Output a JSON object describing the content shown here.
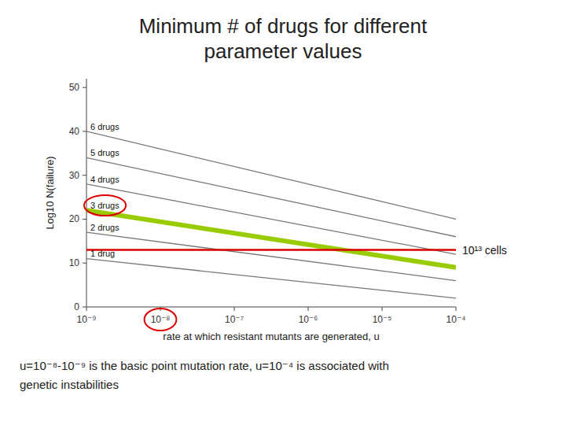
{
  "chart_data": {
    "type": "line",
    "title": [
      "Minimum # of drugs for different",
      "parameter values"
    ],
    "x_label": "rate at which resistant mutants are generated, u",
    "y_label": "Log10 N(failure)",
    "xlim": [
      -9,
      -4
    ],
    "ylim": [
      0,
      52
    ],
    "xticks": [
      {
        "value": -9,
        "label": "10⁻⁹"
      },
      {
        "value": -8,
        "label": "10⁻⁸"
      },
      {
        "value": -7,
        "label": "10⁻⁷"
      },
      {
        "value": -6,
        "label": "10⁻⁶"
      },
      {
        "value": -5,
        "label": "10⁻⁵"
      },
      {
        "value": -4,
        "label": "10⁻⁴"
      }
    ],
    "yticks": [
      0,
      10,
      20,
      30,
      40,
      50
    ],
    "grid": false,
    "series": [
      {
        "name": "1 drug",
        "color": "#777777",
        "x": [
          -9,
          -4
        ],
        "values": [
          11,
          2
        ]
      },
      {
        "name": "2 drugs",
        "color": "#777777",
        "x": [
          -9,
          -4
        ],
        "values": [
          17,
          6
        ]
      },
      {
        "name": "3 drugs",
        "color": "#777777",
        "x": [
          -9,
          -4
        ],
        "values": [
          22,
          9
        ]
      },
      {
        "name": "4 drugs",
        "color": "#777777",
        "x": [
          -9,
          -4
        ],
        "values": [
          28,
          12
        ]
      },
      {
        "name": "5 drugs",
        "color": "#777777",
        "x": [
          -9,
          -4
        ],
        "values": [
          34,
          16
        ]
      },
      {
        "name": "6 drugs",
        "color": "#777777",
        "x": [
          -9,
          -4
        ],
        "values": [
          40,
          20
        ]
      },
      {
        "color": "#99cc00",
        "x": [
          -9,
          -4
        ],
        "values": [
          22,
          9
        ]
      }
    ],
    "hline": {
      "y": 13,
      "color": "#dd0000",
      "label": "10¹³ cells"
    },
    "notes": [
      "u=10⁻⁸-10⁻⁹ is the basic point mutation rate, u=10⁻⁴ is associated with",
      "genetic instabilities"
    ]
  }
}
